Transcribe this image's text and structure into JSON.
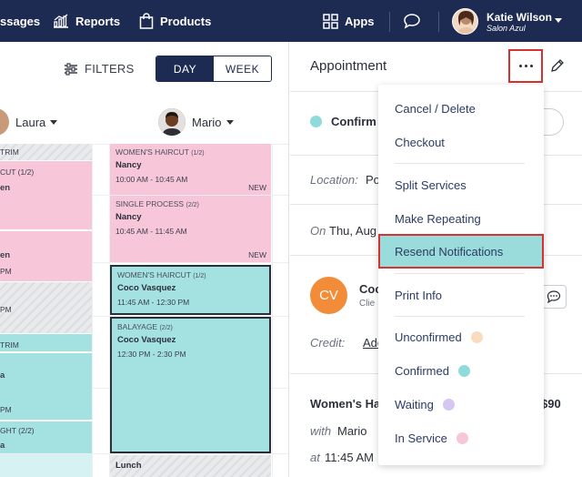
{
  "nav": {
    "messages": "ssages",
    "reports": "Reports",
    "products": "Products",
    "apps": "Apps",
    "user_name": "Katie Wilson",
    "user_salon": "Salon Azul"
  },
  "calendar": {
    "filters": "FILTERS",
    "view_day": "DAY",
    "view_week": "WEEK",
    "staff": [
      "Laura",
      "Mario"
    ],
    "left_col": [
      {
        "text": "TRIM"
      },
      {
        "text": "CUT (1/2)"
      },
      {
        "text": "en"
      },
      {
        "text": "en"
      },
      {
        "text": "PM"
      },
      {
        "text": "PM"
      },
      {
        "text": "TRIM"
      },
      {
        "text": "a"
      },
      {
        "text": "PM"
      },
      {
        "text": "GHT (2/2)"
      },
      {
        "text": "a"
      }
    ],
    "appointments": [
      {
        "service": "WOMEN'S HAIRCUT",
        "step": "(1/2)",
        "client": "Nancy",
        "time": "10:00 AM - 10:45 AM",
        "badge": "NEW"
      },
      {
        "service": "SINGLE PROCESS",
        "step": "(2/2)",
        "client": "Nancy",
        "time": "10:45 AM - 11:45 AM",
        "badge": "NEW"
      },
      {
        "service": "WOMEN'S HAIRCUT",
        "step": "(1/2)",
        "client": "Coco Vasquez",
        "time": "11:45 AM - 12:30 PM",
        "badge": ""
      },
      {
        "service": "BALAYAGE",
        "step": "(2/2)",
        "client": "Coco Vasquez",
        "time": "12:30 PM - 2:30 PM",
        "badge": ""
      }
    ],
    "lunch": "Lunch"
  },
  "panel": {
    "title": "Appointment",
    "status": "Confirm",
    "location_label": "Location:",
    "location_value": "Po",
    "date_prefix": "On",
    "date_value": "Thu, Aug",
    "client_initials": "CV",
    "client_name": "Coc",
    "client_sub": "Clie",
    "credit_label": "Credit:",
    "credit_link": "Add",
    "service_name": "Women's Ha",
    "service_price": "$90",
    "with_label": "with",
    "with_value": "Mario",
    "at_label": "at",
    "at_value": "11:45 AM"
  },
  "menu": {
    "items": [
      {
        "label": "Cancel / Delete"
      },
      {
        "label": "Checkout"
      },
      {
        "label": "Split Services"
      },
      {
        "label": "Make Repeating"
      },
      {
        "label": "Resend Notifications"
      },
      {
        "label": "Print Info"
      },
      {
        "label": "Unconfirmed",
        "color": "#f9dcc0"
      },
      {
        "label": "Confirmed",
        "color": "#8fdbdb"
      },
      {
        "label": "Waiting",
        "color": "#d5c6f2"
      },
      {
        "label": "In Service",
        "color": "#f7c6d9"
      }
    ]
  },
  "colors": {
    "nav_bg": "#1d2a52",
    "pink": "#f7c6d9",
    "teal": "#a4e1e1",
    "highlight": "#9adcdc",
    "outline_red": "#d63232"
  }
}
